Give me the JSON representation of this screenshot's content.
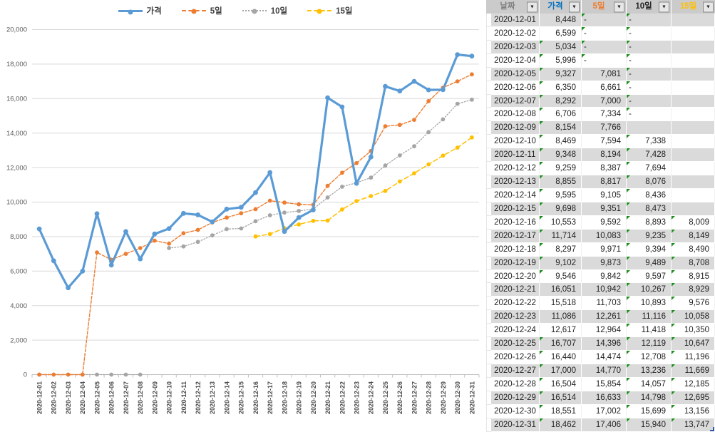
{
  "chart_data": {
    "type": "line",
    "title": "",
    "xlabel": "",
    "ylabel": "",
    "ylim": [
      0,
      20000
    ],
    "ytick_step": 2000,
    "grid": true,
    "legend_position": "top",
    "y_ticks": [
      "0",
      "2,000",
      "4,000",
      "6,000",
      "8,000",
      "10,000",
      "12,000",
      "14,000",
      "16,000",
      "18,000",
      "20,000"
    ],
    "categories": [
      "2020-12-01",
      "2020-12-02",
      "2020-12-03",
      "2020-12-04",
      "2020-12-05",
      "2020-12-06",
      "2020-12-07",
      "2020-12-08",
      "2020-12-09",
      "2020-12-10",
      "2020-12-11",
      "2020-12-12",
      "2020-12-13",
      "2020-12-14",
      "2020-12-15",
      "2020-12-16",
      "2020-12-17",
      "2020-12-18",
      "2020-12-19",
      "2020-12-20",
      "2020-12-21",
      "2020-12-22",
      "2020-12-23",
      "2020-12-24",
      "2020-12-25",
      "2020-12-26",
      "2020-12-27",
      "2020-12-28",
      "2020-12-29",
      "2020-12-30",
      "2020-12-31"
    ],
    "series": [
      {
        "name": "가격",
        "color": "#5B9BD5",
        "line": "solid",
        "values": [
          8448,
          6599,
          5034,
          5996,
          9327,
          6350,
          8292,
          6706,
          8154,
          8469,
          9348,
          9259,
          8855,
          9595,
          9698,
          10553,
          11714,
          8297,
          9102,
          9546,
          16051,
          15518,
          11086,
          12617,
          16707,
          16440,
          17000,
          16504,
          16514,
          18551,
          18462
        ]
      },
      {
        "name": "5일",
        "color": "#ED7D31",
        "line": "dashed",
        "values": [
          0,
          0,
          0,
          0,
          7081,
          6661,
          7000,
          7334,
          7766,
          7594,
          8194,
          8387,
          8817,
          9105,
          9351,
          9592,
          10083,
          9971,
          9873,
          9842,
          10942,
          11703,
          12261,
          12964,
          14396,
          14474,
          14770,
          15854,
          16633,
          17002,
          17406
        ]
      },
      {
        "name": "10일",
        "color": "#A5A5A5",
        "line": "dotted",
        "values": [
          0,
          0,
          0,
          0,
          0,
          0,
          0,
          0,
          null,
          7338,
          7428,
          7694,
          8076,
          8436,
          8473,
          8893,
          9235,
          9394,
          9489,
          9597,
          10267,
          10893,
          11116,
          11418,
          12119,
          12708,
          13236,
          14057,
          14798,
          15699,
          15940
        ]
      },
      {
        "name": "15일",
        "color": "#FFC000",
        "line": "long-dash",
        "values": [
          null,
          null,
          null,
          null,
          null,
          null,
          null,
          null,
          null,
          null,
          null,
          null,
          null,
          null,
          null,
          8009,
          8149,
          8490,
          8708,
          8915,
          8929,
          9576,
          10058,
          10350,
          10647,
          11196,
          11669,
          12185,
          12695,
          13156,
          13747
        ]
      }
    ]
  },
  "table": {
    "filter_icon": "▼",
    "headers": [
      {
        "label": "날짜",
        "color": "#7F7F7F"
      },
      {
        "label": "가격",
        "color": "#0070C0"
      },
      {
        "label": "5일",
        "color": "#ED7D31"
      },
      {
        "label": "10일",
        "color": "#262626"
      },
      {
        "label": "15일",
        "color": "#FFC000"
      }
    ],
    "rows": [
      {
        "date": "2020-12-01",
        "price": "8,448",
        "d5": "-",
        "d10": "-",
        "d15": "",
        "flags": [
          "d5",
          "d10"
        ]
      },
      {
        "date": "2020-12-02",
        "price": "6,599",
        "d5": "-",
        "d10": "-",
        "d15": "",
        "flags": [
          "d5",
          "d10"
        ]
      },
      {
        "date": "2020-12-03",
        "price": "5,034",
        "d5": "-",
        "d10": "-",
        "d15": "",
        "flags": [
          "price",
          "d5",
          "d10"
        ]
      },
      {
        "date": "2020-12-04",
        "price": "5,996",
        "d5": "-",
        "d10": "-",
        "d15": "",
        "flags": [
          "price",
          "d5",
          "d10"
        ]
      },
      {
        "date": "2020-12-05",
        "price": "9,327",
        "d5": "7,081",
        "d10": "-",
        "d15": "",
        "flags": [
          "price",
          "d10"
        ]
      },
      {
        "date": "2020-12-06",
        "price": "6,350",
        "d5": "6,661",
        "d10": "-",
        "d15": "",
        "flags": [
          "price",
          "d10"
        ]
      },
      {
        "date": "2020-12-07",
        "price": "8,292",
        "d5": "7,000",
        "d10": "-",
        "d15": "",
        "flags": [
          "price",
          "d10"
        ]
      },
      {
        "date": "2020-12-08",
        "price": "6,706",
        "d5": "7,334",
        "d10": "-",
        "d15": "",
        "flags": [
          "price",
          "d10"
        ]
      },
      {
        "date": "2020-12-09",
        "price": "8,154",
        "d5": "7,766",
        "d10": "",
        "d15": "",
        "flags": [
          "price"
        ]
      },
      {
        "date": "2020-12-10",
        "price": "8,469",
        "d5": "7,594",
        "d10": "7,338",
        "d15": "",
        "flags": [
          "price",
          "d10"
        ]
      },
      {
        "date": "2020-12-11",
        "price": "9,348",
        "d5": "8,194",
        "d10": "7,428",
        "d15": "",
        "flags": [
          "price",
          "d10"
        ]
      },
      {
        "date": "2020-12-12",
        "price": "9,259",
        "d5": "8,387",
        "d10": "7,694",
        "d15": "",
        "flags": [
          "price",
          "d10"
        ]
      },
      {
        "date": "2020-12-13",
        "price": "8,855",
        "d5": "8,817",
        "d10": "8,076",
        "d15": "",
        "flags": [
          "price",
          "d10"
        ]
      },
      {
        "date": "2020-12-14",
        "price": "9,595",
        "d5": "9,105",
        "d10": "8,436",
        "d15": "",
        "flags": [
          "price",
          "d10"
        ]
      },
      {
        "date": "2020-12-15",
        "price": "9,698",
        "d5": "9,351",
        "d10": "8,473",
        "d15": "",
        "flags": [
          "price",
          "d10"
        ]
      },
      {
        "date": "2020-12-16",
        "price": "10,553",
        "d5": "9,592",
        "d10": "8,893",
        "d15": "8,009",
        "flags": [
          "price",
          "d10",
          "d15"
        ]
      },
      {
        "date": "2020-12-17",
        "price": "11,714",
        "d5": "10,083",
        "d10": "9,235",
        "d15": "8,149",
        "flags": [
          "price",
          "d10",
          "d15"
        ]
      },
      {
        "date": "2020-12-18",
        "price": "8,297",
        "d5": "9,971",
        "d10": "9,394",
        "d15": "8,490",
        "flags": [
          "price",
          "d10",
          "d15"
        ]
      },
      {
        "date": "2020-12-19",
        "price": "9,102",
        "d5": "9,873",
        "d10": "9,489",
        "d15": "8,708",
        "flags": [
          "price",
          "d10",
          "d15"
        ]
      },
      {
        "date": "2020-12-20",
        "price": "9,546",
        "d5": "9,842",
        "d10": "9,597",
        "d15": "8,915",
        "flags": [
          "price",
          "d10",
          "d15"
        ]
      },
      {
        "date": "2020-12-21",
        "price": "16,051",
        "d5": "10,942",
        "d10": "10,267",
        "d15": "8,929",
        "flags": [
          "d10",
          "d15"
        ]
      },
      {
        "date": "2020-12-22",
        "price": "15,518",
        "d5": "11,703",
        "d10": "10,893",
        "d15": "9,576",
        "flags": [
          "d10",
          "d15"
        ]
      },
      {
        "date": "2020-12-23",
        "price": "11,086",
        "d5": "12,261",
        "d10": "11,116",
        "d15": "10,058",
        "flags": [
          "d10",
          "d15"
        ]
      },
      {
        "date": "2020-12-24",
        "price": "12,617",
        "d5": "12,964",
        "d10": "11,418",
        "d15": "10,350",
        "flags": [
          "d10",
          "d15"
        ]
      },
      {
        "date": "2020-12-25",
        "price": "16,707",
        "d5": "14,396",
        "d10": "12,119",
        "d15": "10,647",
        "flags": [
          "price",
          "d10",
          "d15"
        ]
      },
      {
        "date": "2020-12-26",
        "price": "16,440",
        "d5": "14,474",
        "d10": "12,708",
        "d15": "11,196",
        "flags": [
          "price",
          "d10",
          "d15"
        ]
      },
      {
        "date": "2020-12-27",
        "price": "17,000",
        "d5": "14,770",
        "d10": "13,236",
        "d15": "11,669",
        "flags": [
          "price",
          "d10",
          "d15"
        ]
      },
      {
        "date": "2020-12-28",
        "price": "16,504",
        "d5": "15,854",
        "d10": "14,057",
        "d15": "12,185",
        "flags": [
          "price",
          "d10",
          "d15"
        ]
      },
      {
        "date": "2020-12-29",
        "price": "16,514",
        "d5": "16,633",
        "d10": "14,798",
        "d15": "12,695",
        "flags": [
          "price",
          "d10",
          "d15"
        ]
      },
      {
        "date": "2020-12-30",
        "price": "18,551",
        "d5": "17,002",
        "d10": "15,699",
        "d15": "13,156",
        "flags": [
          "price",
          "d10",
          "d15"
        ]
      },
      {
        "date": "2020-12-31",
        "price": "18,462",
        "d5": "17,406",
        "d10": "15,940",
        "d15": "13,747",
        "flags": [
          "price",
          "d10",
          "d15"
        ]
      }
    ]
  },
  "colors": {
    "grid": "#D9D9D9",
    "axis": "#BFBFBF",
    "axis_text": "#595959",
    "band": "#DADADA",
    "error_triangle": "#1E8E1E"
  }
}
